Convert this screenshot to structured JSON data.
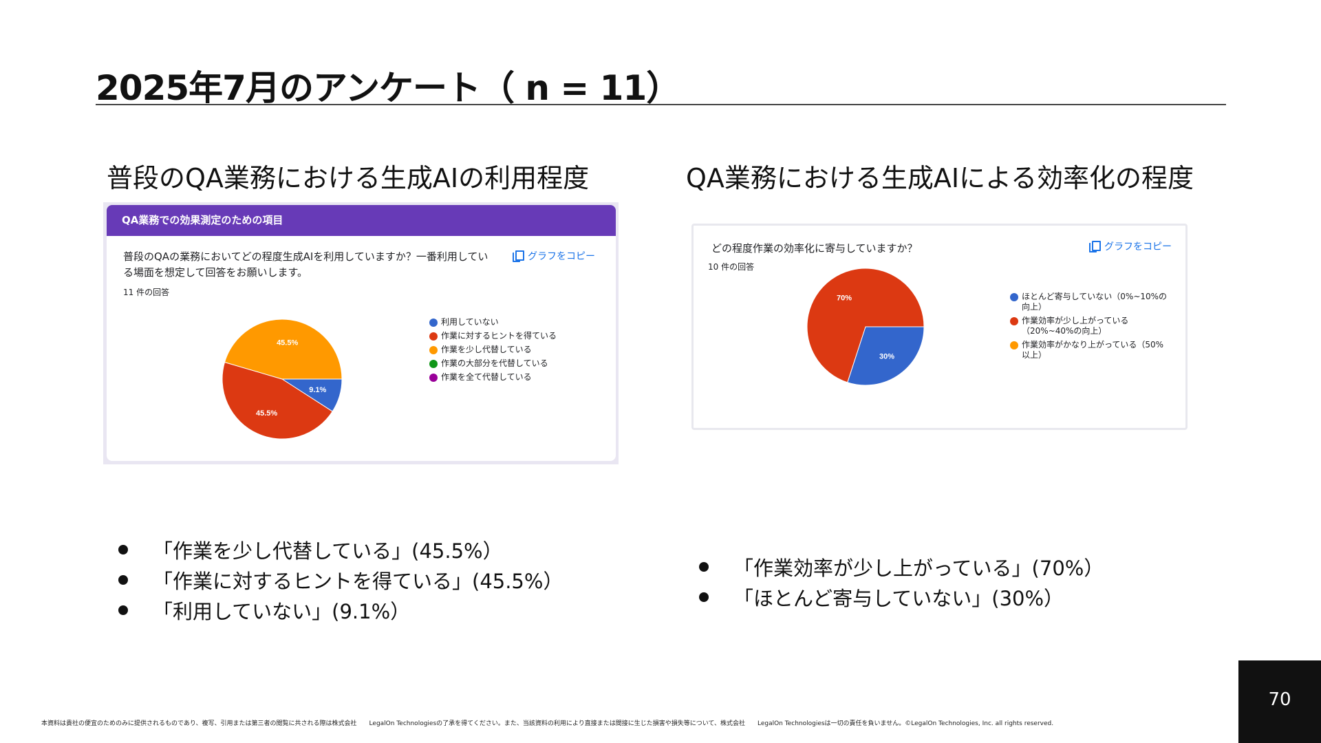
{
  "slide": {
    "title": "2025年7月のアンケート（ n = 11）",
    "page_number": "70",
    "footer": "本資料は貴社の便宜のためのみに提供されるものであり、複写、引用または第三者の閲覧に共される際は株式会社　　LegalOn Technologiesの了承を得てください。また、当該資料の利用により直接または間接に生じた損害や損失等について、株式会社　　LegalOn Technologiesは一切の責任を負いません。©LegalOn Technologies, Inc. all rights reserved."
  },
  "left": {
    "section_title": "普段のQA業務における生成AIの利用程度",
    "form_header": "QA業務での効果測定のための項目",
    "question": "普段のQAの業務においてどの程度生成AIを利用していますか？一番利用している場面を想定して回答をお願いします。",
    "responses": "11 件の回答",
    "copy_label": "グラフをコピー",
    "bullets": [
      "「作業を少し代替している」(45.5%）",
      "「作業に対するヒントを得ている」(45.5%）",
      "「利用していない」(9.1%）"
    ]
  },
  "right": {
    "section_title": "QA業務における生成AIによる効率化の程度",
    "question": "どの程度作業の効率化に寄与していますか？",
    "responses": "10 件の回答",
    "copy_label": "グラフをコピー",
    "bullets": [
      "「作業効率が少し上がっている」(70%）",
      "「ほとんど寄与していない」(30%）"
    ]
  },
  "chart_data": [
    {
      "type": "pie",
      "title": "普段のQAの業務においてどの程度生成AIを利用していますか？一番利用している場面を想定して回答をお願いします。",
      "categories": [
        "利用していない",
        "作業に対するヒントを得ている",
        "作業を少し代替している",
        "作業の大部分を代替している",
        "作業を全て代替している"
      ],
      "values": [
        9.1,
        45.5,
        45.5,
        0,
        0
      ],
      "labels": [
        "9.1%",
        "45.5%",
        "45.5%",
        "",
        ""
      ],
      "colors": [
        "#3366cc",
        "#dc3912",
        "#ff9900",
        "#109618",
        "#990099"
      ],
      "legend": "right"
    },
    {
      "type": "pie",
      "title": "どの程度作業の効率化に寄与していますか？",
      "categories": [
        "ほとんど寄与していない（0%~10%の向上）",
        "作業効率が少し上がっている（20%~40%の向上）",
        "作業効率がかなり上がっている（50%以上）"
      ],
      "values": [
        30,
        70,
        0
      ],
      "labels": [
        "30%",
        "70%",
        ""
      ],
      "colors": [
        "#3366cc",
        "#dc3912",
        "#ff9900"
      ],
      "legend": "right"
    }
  ]
}
